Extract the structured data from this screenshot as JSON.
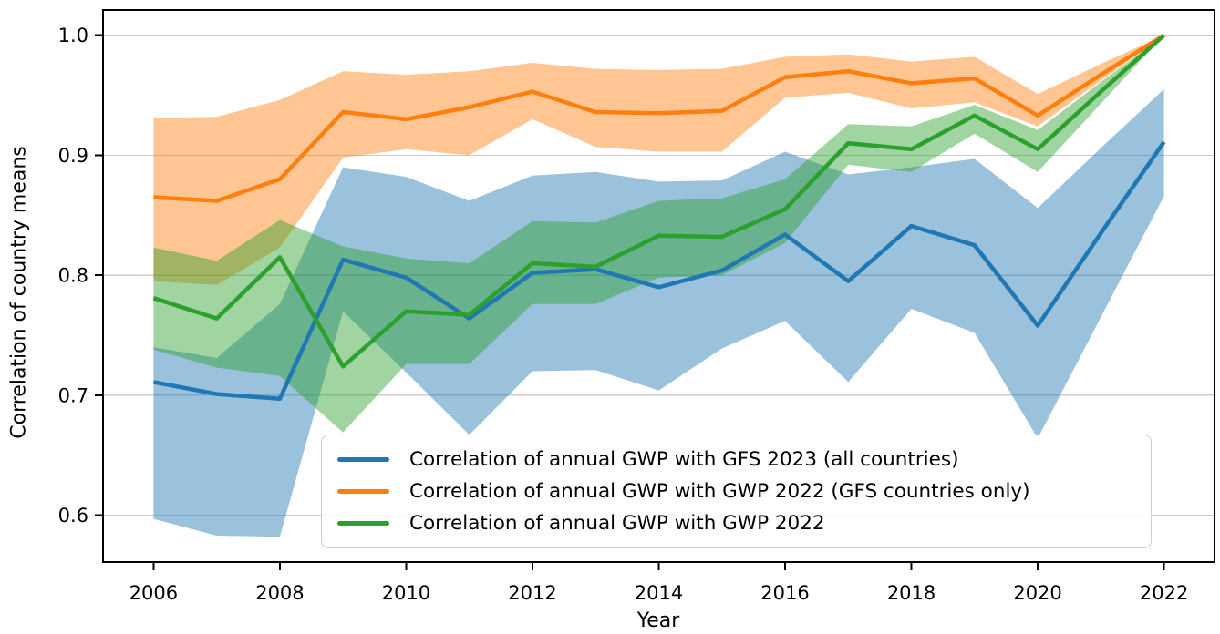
{
  "chart_data": {
    "type": "line",
    "title": "",
    "xlabel": "Year",
    "ylabel": "Correlation of country means",
    "x": [
      2006,
      2007,
      2008,
      2009,
      2010,
      2011,
      2012,
      2013,
      2014,
      2015,
      2016,
      2017,
      2018,
      2019,
      2020,
      2021,
      2022
    ],
    "xticks": [
      2006,
      2008,
      2010,
      2012,
      2014,
      2016,
      2018,
      2020,
      2022
    ],
    "yticks": [
      0.6,
      0.7,
      0.8,
      0.9,
      1.0
    ],
    "xlim": [
      2005.2,
      2022.8
    ],
    "ylim": [
      0.561,
      1.021
    ],
    "grid": "horizontal-only",
    "grid_color": "#cccccc",
    "legend_position": "inside lower center-right",
    "background_color": "#ffffff",
    "series": [
      {
        "name": "Correlation of annual GWP with GFS 2023 (all countries)",
        "color": "#1f77b4",
        "band_opacity": 0.45,
        "values": [
          0.711,
          0.701,
          0.697,
          0.813,
          0.798,
          0.764,
          0.802,
          0.805,
          0.79,
          0.804,
          0.834,
          0.795,
          0.841,
          0.825,
          0.758,
          0.835,
          0.911
        ],
        "band_lower": [
          0.597,
          0.583,
          0.582,
          0.77,
          0.719,
          0.667,
          0.72,
          0.721,
          0.704,
          0.739,
          0.762,
          0.711,
          0.772,
          0.752,
          0.664,
          0.765,
          0.866
        ],
        "band_upper": [
          0.74,
          0.731,
          0.776,
          0.89,
          0.882,
          0.862,
          0.883,
          0.886,
          0.878,
          0.879,
          0.903,
          0.884,
          0.89,
          0.897,
          0.856,
          0.906,
          0.955
        ]
      },
      {
        "name": "Correlation of annual GWP with GWP 2022 (GFS countries only)",
        "color": "#ff7f0e",
        "band_opacity": 0.45,
        "values": [
          0.865,
          0.862,
          0.88,
          0.936,
          0.93,
          0.94,
          0.953,
          0.936,
          0.935,
          0.937,
          0.965,
          0.97,
          0.96,
          0.964,
          0.933,
          0.967,
          1.0
        ],
        "band_lower": [
          0.795,
          0.792,
          0.823,
          0.898,
          0.905,
          0.9,
          0.93,
          0.907,
          0.903,
          0.903,
          0.948,
          0.952,
          0.939,
          0.944,
          0.924,
          0.962,
          1.0
        ],
        "band_upper": [
          0.931,
          0.932,
          0.946,
          0.97,
          0.967,
          0.97,
          0.977,
          0.972,
          0.971,
          0.972,
          0.982,
          0.984,
          0.978,
          0.982,
          0.951,
          0.976,
          1.0
        ]
      },
      {
        "name": "Correlation of annual GWP with GWP 2022",
        "color": "#2ca02c",
        "band_opacity": 0.45,
        "values": [
          0.781,
          0.764,
          0.815,
          0.724,
          0.77,
          0.767,
          0.81,
          0.807,
          0.833,
          0.832,
          0.855,
          0.91,
          0.905,
          0.933,
          0.905,
          0.953,
          1.0
        ],
        "band_lower": [
          0.738,
          0.723,
          0.716,
          0.669,
          0.726,
          0.726,
          0.776,
          0.776,
          0.798,
          0.8,
          0.827,
          0.892,
          0.886,
          0.918,
          0.886,
          0.943,
          1.0
        ],
        "band_upper": [
          0.823,
          0.812,
          0.846,
          0.824,
          0.814,
          0.81,
          0.845,
          0.844,
          0.862,
          0.864,
          0.88,
          0.926,
          0.924,
          0.942,
          0.921,
          0.961,
          1.0
        ]
      }
    ]
  }
}
